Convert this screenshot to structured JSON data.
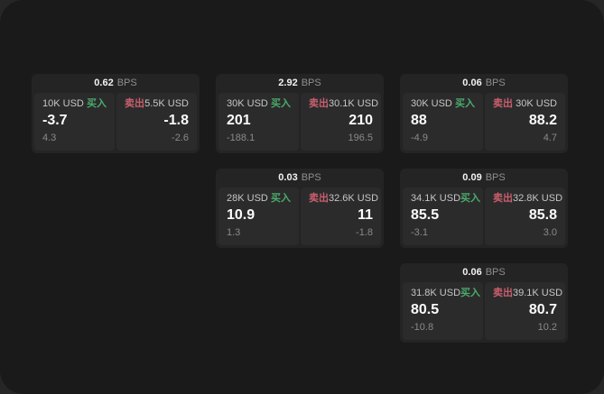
{
  "labels": {
    "buy": "买入",
    "sell": "卖出",
    "bps_unit": "BPS"
  },
  "colors": {
    "buy_green": "#4aab6b",
    "sell_red": "#c95f6d",
    "canvas_bg": "#1a1a1a",
    "card_bg": "#242425",
    "panel_bg": "#2b2b2c"
  },
  "cards": [
    {
      "row": 1,
      "col": 1,
      "bps": "0.62",
      "buy": {
        "amount": "10K USD",
        "value": "-3.7",
        "sub": "4.3"
      },
      "sell": {
        "amount": "5.5K USD",
        "value": "-1.8",
        "sub": "-2.6"
      }
    },
    {
      "row": 1,
      "col": 2,
      "bps": "2.92",
      "buy": {
        "amount": "30K USD",
        "value": "201",
        "sub": "-188.1"
      },
      "sell": {
        "amount": "30.1K USD",
        "value": "210",
        "sub": "196.5"
      }
    },
    {
      "row": 1,
      "col": 3,
      "bps": "0.06",
      "buy": {
        "amount": "30K USD",
        "value": "88",
        "sub": "-4.9"
      },
      "sell": {
        "amount": "30K USD",
        "value": "88.2",
        "sub": "4.7"
      }
    },
    {
      "row": 2,
      "col": 2,
      "bps": "0.03",
      "buy": {
        "amount": "28K USD",
        "value": "10.9",
        "sub": "1.3"
      },
      "sell": {
        "amount": "32.6K USD",
        "value": "11",
        "sub": "-1.8"
      }
    },
    {
      "row": 2,
      "col": 3,
      "bps": "0.09",
      "buy": {
        "amount": "34.1K USD",
        "value": "85.5",
        "sub": "-3.1"
      },
      "sell": {
        "amount": "32.8K USD",
        "value": "85.8",
        "sub": "3.0"
      }
    },
    {
      "row": 3,
      "col": 3,
      "bps": "0.06",
      "buy": {
        "amount": "31.8K USD",
        "value": "80.5",
        "sub": "-10.8"
      },
      "sell": {
        "amount": "39.1K USD",
        "value": "80.7",
        "sub": "10.2"
      }
    }
  ]
}
